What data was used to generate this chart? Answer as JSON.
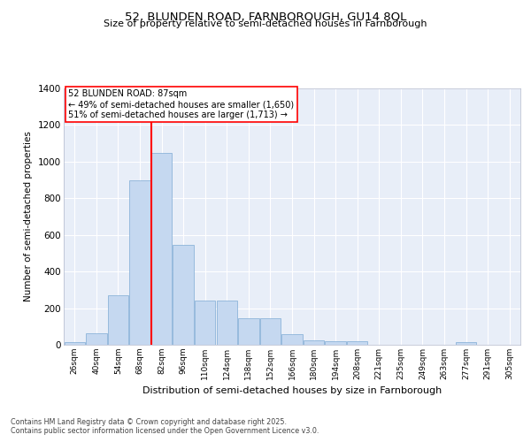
{
  "title_line1": "52, BLUNDEN ROAD, FARNBOROUGH, GU14 8QL",
  "title_line2": "Size of property relative to semi-detached houses in Farnborough",
  "xlabel": "Distribution of semi-detached houses by size in Farnborough",
  "ylabel": "Number of semi-detached properties",
  "bar_color": "#c5d8f0",
  "bar_edge_color": "#7eaad4",
  "background_color": "#e8eef8",
  "grid_color": "#ffffff",
  "categories": [
    "26sqm",
    "40sqm",
    "54sqm",
    "68sqm",
    "82sqm",
    "96sqm",
    "110sqm",
    "124sqm",
    "138sqm",
    "152sqm",
    "166sqm",
    "180sqm",
    "194sqm",
    "208sqm",
    "221sqm",
    "235sqm",
    "249sqm",
    "263sqm",
    "277sqm",
    "291sqm",
    "305sqm"
  ],
  "values": [
    15,
    65,
    270,
    900,
    1050,
    545,
    240,
    240,
    145,
    145,
    60,
    25,
    20,
    20,
    0,
    0,
    0,
    0,
    15,
    0,
    0
  ],
  "red_line_index": 4,
  "annotation_title": "52 BLUNDEN ROAD: 87sqm",
  "annotation_line1": "← 49% of semi-detached houses are smaller (1,650)",
  "annotation_line2": "51% of semi-detached houses are larger (1,713) →",
  "ylim": [
    0,
    1400
  ],
  "yticks": [
    0,
    200,
    400,
    600,
    800,
    1000,
    1200,
    1400
  ],
  "footnote1": "Contains HM Land Registry data © Crown copyright and database right 2025.",
  "footnote2": "Contains public sector information licensed under the Open Government Licence v3.0."
}
